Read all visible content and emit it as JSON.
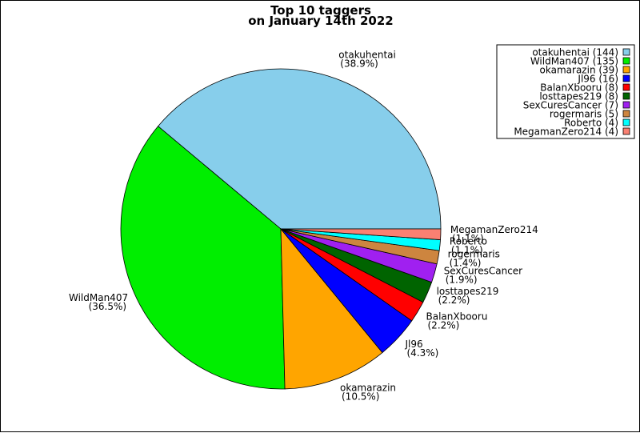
{
  "chart_data": {
    "type": "pie",
    "title": "Top 10 taggers",
    "subtitle": "on January 14th 2022",
    "legend_position": "top-right",
    "slices": [
      {
        "name": "otakuhentai",
        "value": 144,
        "percent": "38.9%",
        "legend": "otakuhentai (144)",
        "color": "#87ceeb"
      },
      {
        "name": "WildMan407",
        "value": 135,
        "percent": "36.5%",
        "legend": "WildMan407 (135)",
        "color": "#00ee00"
      },
      {
        "name": "okamarazin",
        "value": 39,
        "percent": "10.5%",
        "legend": "okamarazin (39)",
        "color": "#ffa500"
      },
      {
        "name": "Jl96",
        "value": 16,
        "percent": "4.3%",
        "legend": "Jl96 (16)",
        "color": "#0000ff"
      },
      {
        "name": "BalanXbooru",
        "value": 8,
        "percent": "2.2%",
        "legend": "BalanXbooru (8)",
        "color": "#ff0000"
      },
      {
        "name": "losttapes219",
        "value": 8,
        "percent": "2.2%",
        "legend": "losttapes219 (8)",
        "color": "#006400"
      },
      {
        "name": "SexCuresCancer",
        "value": 7,
        "percent": "1.9%",
        "legend": "SexCuresCancer (7)",
        "color": "#a020f0"
      },
      {
        "name": "rogermaris",
        "value": 5,
        "percent": "1.4%",
        "legend": "rogermaris (5)",
        "color": "#cd853f"
      },
      {
        "name": "Roberto",
        "value": 4,
        "percent": "1.1%",
        "legend": "Roberto (4)",
        "color": "#00ffff"
      },
      {
        "name": "MegamanZero214",
        "value": 4,
        "percent": "1.1%",
        "legend": "MegamanZero214 (4)",
        "color": "#fa8072"
      }
    ]
  }
}
